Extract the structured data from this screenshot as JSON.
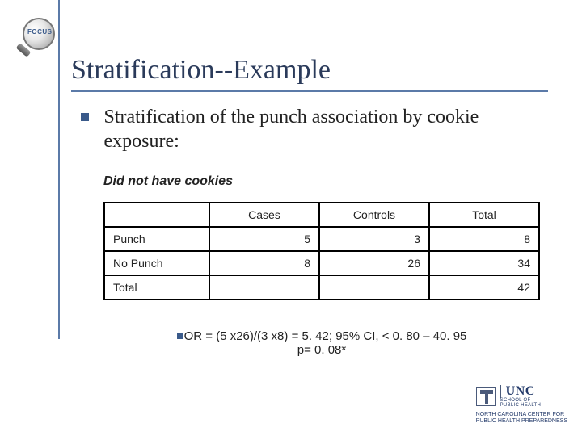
{
  "logo": {
    "text": "FOCUS"
  },
  "title": "Stratification--Example",
  "bullet": "Stratification of the punch association by cookie exposure:",
  "subhead": "Did not have cookies",
  "table": {
    "columns": [
      "Cases",
      "Controls",
      "Total"
    ],
    "rows": [
      {
        "label": "Punch",
        "cases": "5",
        "controls": "3",
        "total": "8"
      },
      {
        "label": "No Punch",
        "cases": "8",
        "controls": "26",
        "total": "34"
      },
      {
        "label": "Total",
        "cases": "",
        "controls": "",
        "total": "42"
      }
    ],
    "border_color": "#000000",
    "font_size": 14
  },
  "stats": {
    "line1": "OR = (5 x26)/(3 x8) = 5. 42; 95% CI, < 0. 80 –  40. 95",
    "line2": "p= 0. 08*"
  },
  "footer": {
    "unc": "UNC",
    "school1": "SCHOOL OF",
    "school2": "PUBLIC HEALTH",
    "center1": "NORTH CAROLINA CENTER FOR",
    "center2": "PUBLIC HEALTH PREPAREDNESS"
  },
  "colors": {
    "rule": "#5b7aa8",
    "title": "#2a3a5a",
    "bullet_sq": "#3a5a8a",
    "background": "#ffffff"
  }
}
